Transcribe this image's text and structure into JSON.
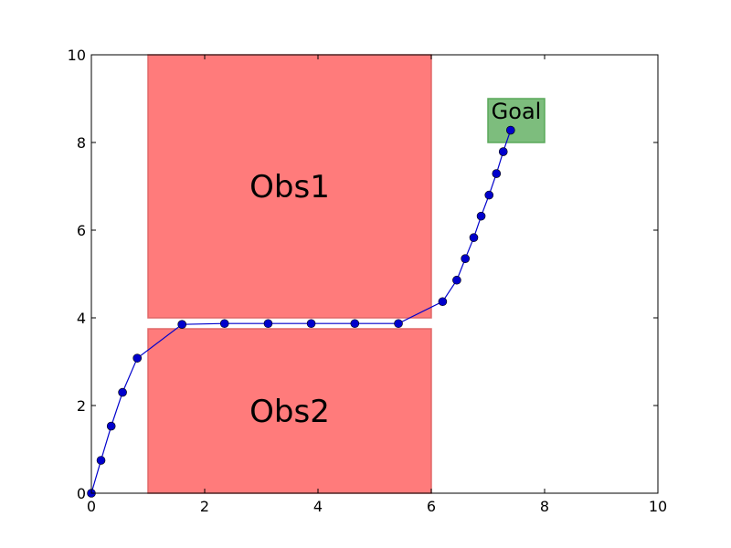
{
  "chart_data": {
    "type": "scatter",
    "title": "",
    "xlabel": "",
    "ylabel": "",
    "xlim": [
      0,
      10
    ],
    "ylim": [
      0,
      10
    ],
    "grid": false,
    "x_ticks": [
      0,
      2,
      4,
      6,
      8,
      10
    ],
    "y_ticks": [
      0,
      2,
      4,
      6,
      8,
      10
    ],
    "x_tick_labels": [
      "0",
      "2",
      "4",
      "6",
      "8",
      "10"
    ],
    "y_tick_labels": [
      "0",
      "2",
      "4",
      "6",
      "8",
      "10"
    ],
    "regions": [
      {
        "label": "Obs1",
        "x": [
          1,
          6
        ],
        "y": [
          4,
          10
        ],
        "color": "#ff7b7b"
      },
      {
        "label": "Obs2",
        "x": [
          1,
          6
        ],
        "y": [
          0,
          3.75
        ],
        "color": "#ff7b7b"
      },
      {
        "label": "Goal",
        "x": [
          7,
          8
        ],
        "y": [
          8,
          9
        ],
        "color": "#7dbd7d"
      }
    ],
    "series": [
      {
        "color": "#0000cc",
        "x": [
          0,
          0.17,
          0.35,
          0.55,
          0.81,
          1.6,
          2.35,
          3.12,
          3.88,
          4.65,
          5.42,
          6.2,
          6.45,
          6.6,
          6.75,
          6.88,
          7.02,
          7.15,
          7.27,
          7.4
        ],
        "y": [
          0,
          0.75,
          1.53,
          2.3,
          3.08,
          3.85,
          3.87,
          3.87,
          3.87,
          3.87,
          3.87,
          4.37,
          4.86,
          5.35,
          5.83,
          6.32,
          6.8,
          7.29,
          7.79,
          8.28
        ]
      }
    ]
  }
}
